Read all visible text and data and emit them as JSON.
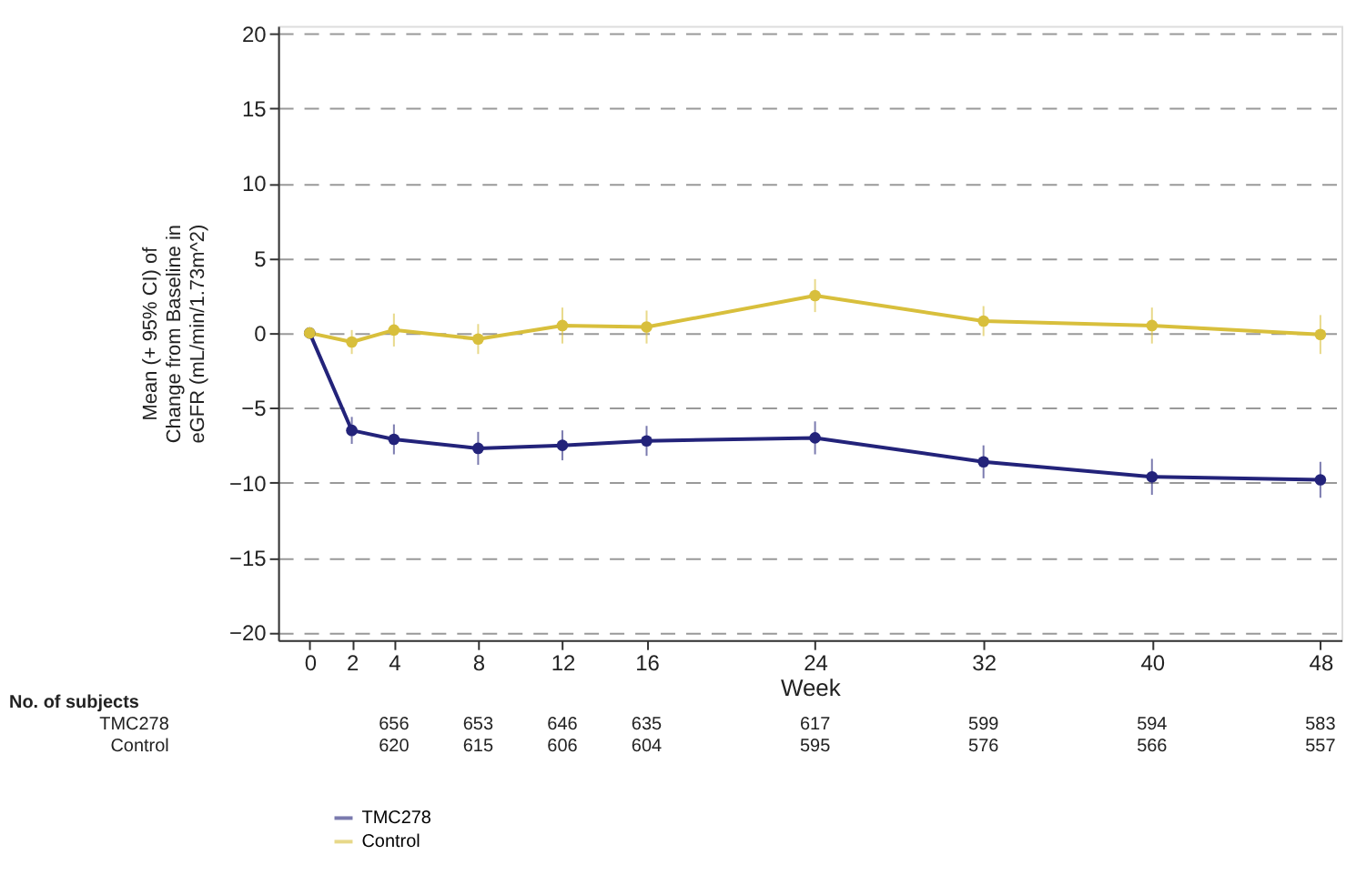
{
  "chart_data": {
    "type": "line",
    "xlabel": "Week",
    "ylabel": "Mean (+ 95% CI) of\nChange from Baseline in\neGFR (mL/min/1.73m^2)",
    "x": [
      0,
      2,
      4,
      8,
      12,
      16,
      24,
      32,
      40,
      48
    ],
    "xticks": [
      0,
      2,
      4,
      8,
      12,
      16,
      24,
      32,
      40,
      48
    ],
    "xlim": [
      -1.5,
      49
    ],
    "ylim": [
      -20.5,
      20.5
    ],
    "yticks": [
      -20,
      -15,
      -10,
      -5,
      0,
      5,
      10,
      15,
      20
    ],
    "grid": "y",
    "line_style": "solid",
    "marker": "circle",
    "legend": "bottom left",
    "series": [
      {
        "name": "TMC278",
        "color": "#23237a",
        "values": [
          0,
          -6.5,
          -7.1,
          -7.7,
          -7.5,
          -7.2,
          -7.0,
          -8.6,
          -9.6,
          -9.8
        ],
        "errors": [
          null,
          0.9,
          1.0,
          1.1,
          1.0,
          1.0,
          1.1,
          1.1,
          1.2,
          1.2
        ]
      },
      {
        "name": "Control",
        "color": "#d8bf3c",
        "values": [
          0,
          -0.6,
          0.2,
          -0.4,
          0.5,
          0.4,
          2.5,
          0.8,
          0.5,
          -0.1
        ],
        "errors": [
          null,
          0.8,
          1.1,
          1.0,
          1.2,
          1.1,
          1.1,
          1.0,
          1.2,
          1.3
        ]
      }
    ],
    "annotations": [
      "No. of subjects",
      "TMC278",
      "Control",
      "656",
      "653",
      "646",
      "635",
      "617",
      "599",
      "594",
      "583",
      "620",
      "615",
      "606",
      "604",
      "595",
      "576",
      "566",
      "557"
    ]
  }
}
